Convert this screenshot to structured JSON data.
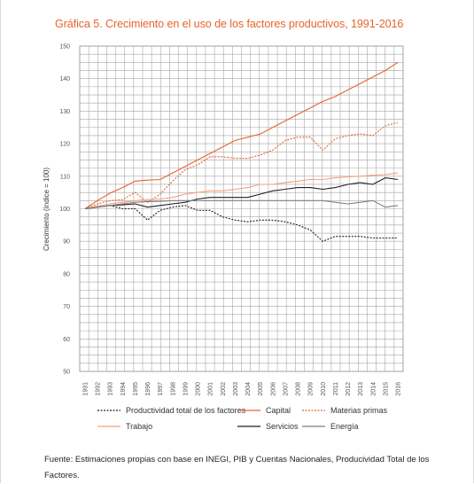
{
  "chart_data": {
    "type": "line",
    "title": "Gráfica 5. Crecimiento en el uso de los factores productivos, 1991-2016",
    "ylabel": "Crecimiento (índice = 100)",
    "xlabel": "",
    "ylim": [
      50,
      150
    ],
    "yticks": [
      50,
      60,
      70,
      80,
      90,
      100,
      110,
      120,
      130,
      140,
      150
    ],
    "grid": true,
    "legend_position": "bottom",
    "x": [
      "1991",
      "1992",
      "1993",
      "1994",
      "1995",
      "1996",
      "1997",
      "1998",
      "1999",
      "2000",
      "2001",
      "2002",
      "2003",
      "2004",
      "2005",
      "2006",
      "2007",
      "2008",
      "2009",
      "2010",
      "2011",
      "2012",
      "2013",
      "2014",
      "2015",
      "2016"
    ],
    "series": [
      {
        "name": "Productividad total de los factores",
        "color": "#231f20",
        "style": "dotted",
        "values": [
          100,
          100.5,
          101,
          100,
          100,
          96.5,
          99.5,
          100.5,
          101,
          99.5,
          99.5,
          97.5,
          96.5,
          96,
          96.5,
          96.5,
          96,
          95,
          93.5,
          90,
          91.5,
          91.5,
          91.5,
          91,
          91,
          91
        ]
      },
      {
        "name": "Capital",
        "color": "#e8642b",
        "style": "solid",
        "values": [
          100,
          102.5,
          104.8,
          106.5,
          108.5,
          108.8,
          109,
          111,
          113,
          115,
          117,
          119,
          121,
          122,
          123,
          125,
          127,
          129,
          131,
          133,
          134.5,
          136.5,
          138.5,
          140.5,
          142.5,
          145
        ]
      },
      {
        "name": "Materias primas",
        "color": "#e8642b",
        "style": "dotted",
        "values": [
          100,
          101.5,
          102.5,
          102.8,
          105,
          102,
          104.5,
          108.5,
          112,
          113.5,
          116,
          116,
          115.5,
          115.5,
          116.5,
          118,
          121,
          122,
          122,
          118,
          121.5,
          122.5,
          123,
          122.5,
          125.5,
          126.5
        ]
      },
      {
        "name": "Trabajo",
        "color": "#f2a27c",
        "style": "solid",
        "values": [
          100,
          100.8,
          101.5,
          102,
          102.5,
          102.8,
          103,
          103.5,
          104.5,
          105,
          105.5,
          105.5,
          106,
          106.5,
          107.5,
          107.5,
          108,
          108.5,
          109,
          109,
          109.5,
          109.8,
          110,
          110.3,
          110.5,
          111
        ]
      },
      {
        "name": "Servicios",
        "color": "#231f20",
        "style": "solid",
        "values": [
          100,
          100.5,
          101,
          101.2,
          101.5,
          100.5,
          101,
          101.5,
          102,
          103,
          103.5,
          103.5,
          103.5,
          103.5,
          104.5,
          105.5,
          106,
          106.5,
          106.5,
          106,
          106.5,
          107.5,
          108,
          107.5,
          109.5,
          109
        ]
      },
      {
        "name": "Energía",
        "color": "#7f7f7f",
        "style": "solid",
        "values": [
          100,
          100.5,
          101,
          101.5,
          102,
          102.2,
          102.3,
          102.5,
          102.5,
          102.5,
          102.5,
          102.5,
          102.5,
          102.5,
          102.5,
          102.5,
          102.5,
          102.5,
          102.5,
          102.5,
          102,
          101.5,
          102,
          102.5,
          100.5,
          101
        ]
      }
    ]
  },
  "source_text": "Fuente: Estimaciones propias con base en INEGI, PIB y Cuentas Nacionales, Producividad Total de los Factores."
}
